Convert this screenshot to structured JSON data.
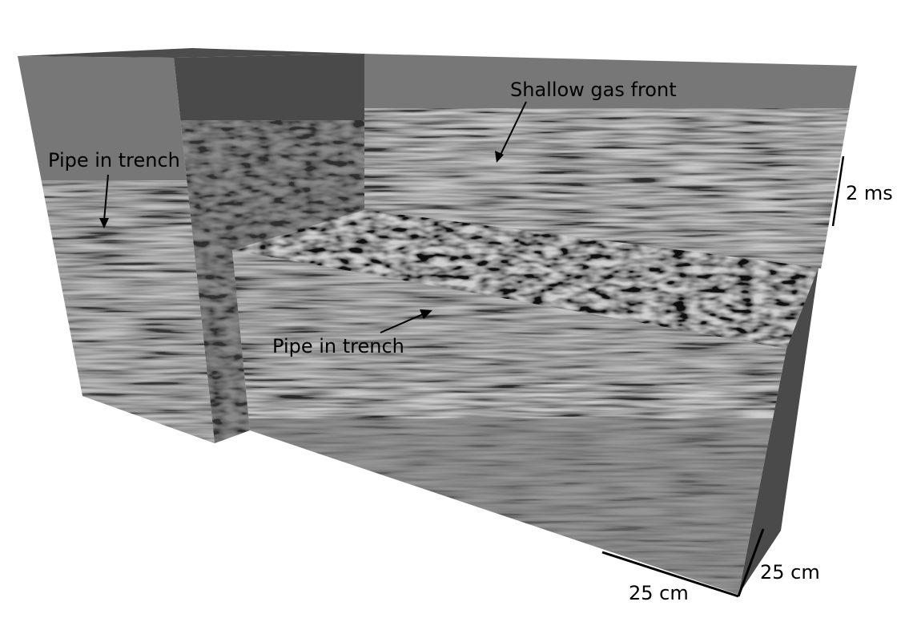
{
  "labels": {
    "pipe_left": "Pipe in trench",
    "pipe_front": "Pipe in trench",
    "gas_front": "Shallow gas front",
    "scale_time": "2 ms",
    "scale_x": "25 cm",
    "scale_y": "25 cm"
  },
  "colors": {
    "face_gray": "#777777",
    "top_dark": "#4a4a4a",
    "side_dark": "#444444",
    "annotation": "#000000"
  }
}
